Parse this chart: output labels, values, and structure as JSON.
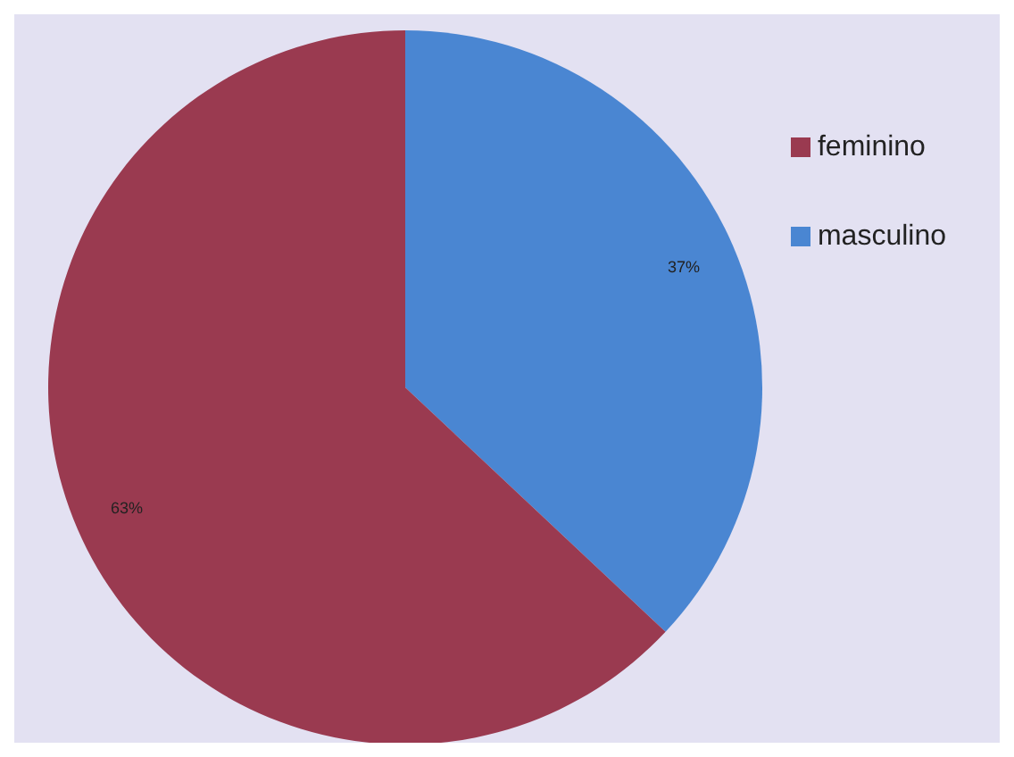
{
  "chart_data": {
    "type": "pie",
    "categories": [
      "masculino",
      "feminino"
    ],
    "values": [
      37,
      63
    ],
    "colors": [
      "#4a86d2",
      "#9a3a50"
    ],
    "value_labels": [
      "37%",
      "63%"
    ],
    "legend": "top right"
  }
}
